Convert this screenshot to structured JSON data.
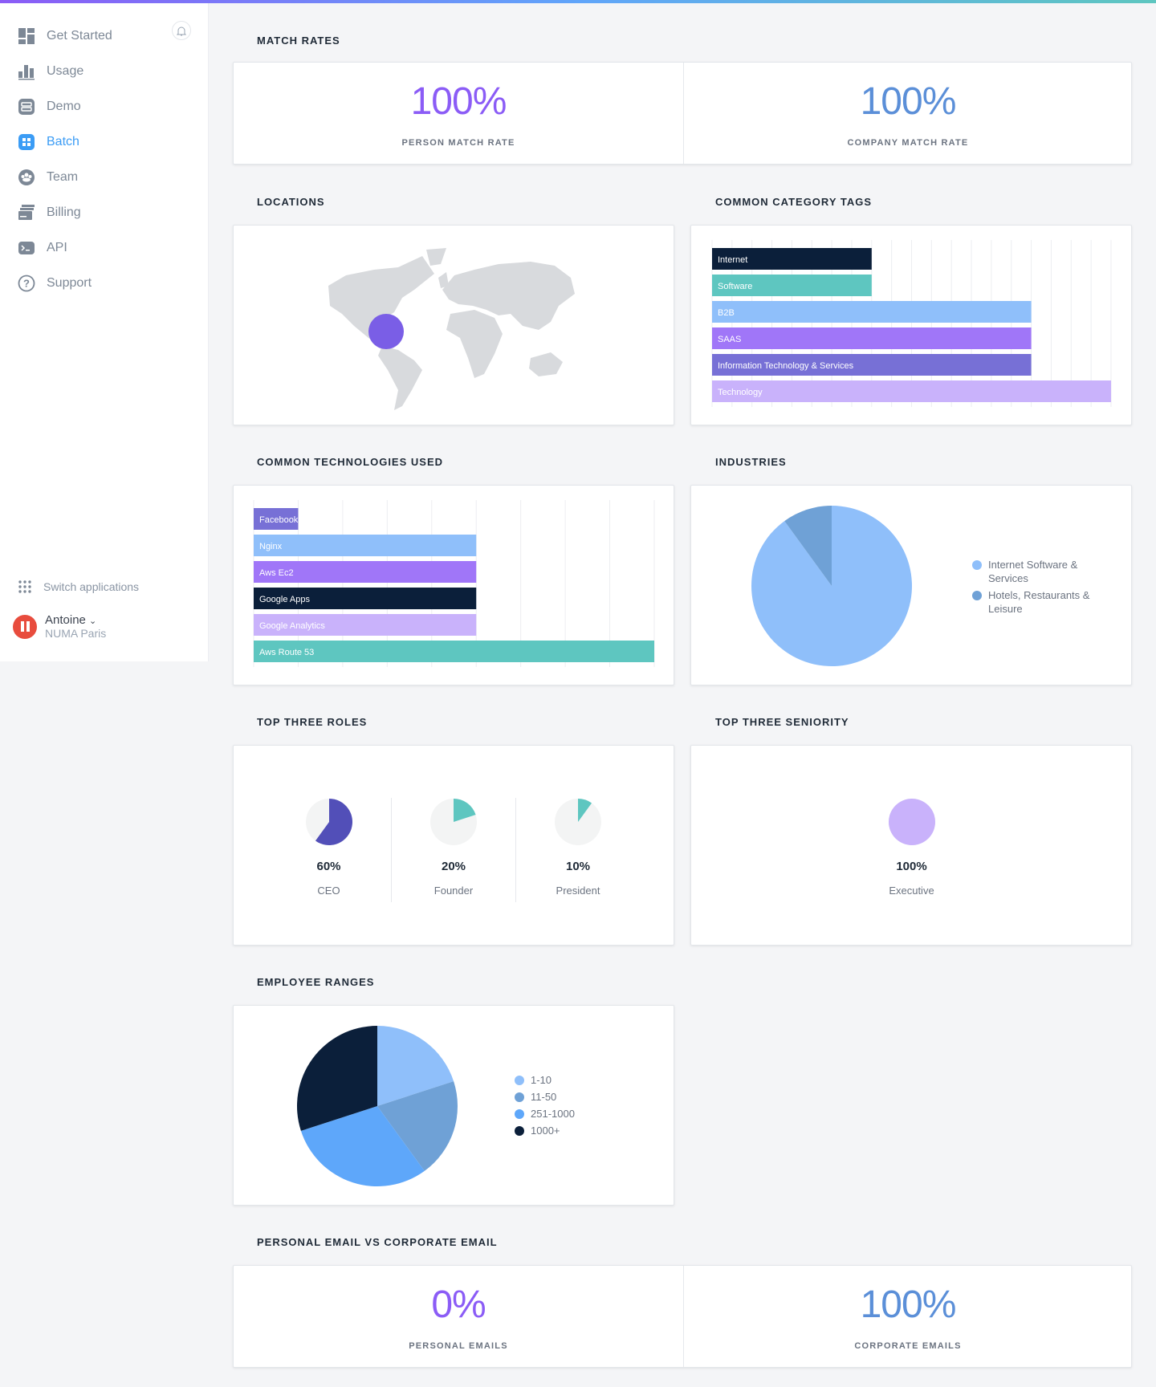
{
  "sidebar": {
    "items": [
      {
        "label": "Get Started",
        "icon": "dashboard-icon"
      },
      {
        "label": "Usage",
        "icon": "bar-chart-icon"
      },
      {
        "label": "Demo",
        "icon": "demo-icon"
      },
      {
        "label": "Batch",
        "icon": "batch-icon",
        "active": true
      },
      {
        "label": "Team",
        "icon": "team-icon"
      },
      {
        "label": "Billing",
        "icon": "billing-icon"
      },
      {
        "label": "API",
        "icon": "terminal-icon"
      },
      {
        "label": "Support",
        "icon": "help-icon"
      }
    ],
    "switch_label": "Switch applications",
    "user": {
      "name": "Antoine",
      "org": "NUMA Paris"
    }
  },
  "colors": {
    "accent": "#3b9cf5",
    "purple": "#8b5cf6",
    "blue": "#5b8fd8"
  },
  "match_rates": {
    "title": "MATCH RATES",
    "person": {
      "value": "100%",
      "label": "PERSON MATCH RATE"
    },
    "company": {
      "value": "100%",
      "label": "COMPANY MATCH RATE"
    }
  },
  "locations": {
    "title": "LOCATIONS"
  },
  "emails": {
    "title": "PERSONAL EMAIL VS CORPORATE EMAIL",
    "personal": {
      "value": "0%",
      "label": "PERSONAL EMAILS"
    },
    "corporate": {
      "value": "100%",
      "label": "CORPORATE EMAILS"
    }
  },
  "chart_data": [
    {
      "id": "category_tags",
      "type": "bar",
      "title": "COMMON CATEGORY TAGS",
      "orientation": "horizontal",
      "categories": [
        "Internet",
        "Software",
        "B2B",
        "SAAS",
        "Information Technology & Services",
        "Technology"
      ],
      "values": [
        2,
        2,
        4,
        4,
        4,
        5
      ],
      "colors": [
        "#0b1f3a",
        "#5ec6c0",
        "#8fbffa",
        "#a076f8",
        "#7770d6",
        "#c9b2fb"
      ],
      "grid": true
    },
    {
      "id": "technologies",
      "type": "bar",
      "title": "COMMON TECHNOLOGIES USED",
      "orientation": "horizontal",
      "categories": [
        "Facebook",
        "Nginx",
        "Aws Ec2",
        "Google Apps",
        "Google Analytics",
        "Aws Route 53"
      ],
      "values": [
        1,
        5,
        5,
        5,
        5,
        9
      ],
      "colors": [
        "#7770d6",
        "#8fbffa",
        "#a076f8",
        "#0b1f3a",
        "#c9b2fb",
        "#5ec6c0"
      ],
      "grid": true
    },
    {
      "id": "industries",
      "type": "pie",
      "title": "INDUSTRIES",
      "labels": [
        "Internet Software & Services",
        "Hotels, Restaurants & Leisure"
      ],
      "values": [
        90,
        10
      ],
      "colors": [
        "#8fbffa",
        "#6fa1d6"
      ],
      "legend": "right"
    },
    {
      "id": "roles",
      "type": "pie",
      "title": "TOP THREE ROLES",
      "items": [
        {
          "label": "CEO",
          "value": 60,
          "display": "60%",
          "color": "#524fb8"
        },
        {
          "label": "Founder",
          "value": 20,
          "display": "20%",
          "color": "#5ec6c0"
        },
        {
          "label": "President",
          "value": 10,
          "display": "10%",
          "color": "#5ec6c0"
        }
      ]
    },
    {
      "id": "seniority",
      "type": "pie",
      "title": "TOP THREE SENIORITY",
      "items": [
        {
          "label": "Executive",
          "value": 100,
          "display": "100%",
          "color": "#c9b2fb"
        }
      ]
    },
    {
      "id": "employee_ranges",
      "type": "pie",
      "title": "EMPLOYEE RANGES",
      "labels": [
        "1-10",
        "11-50",
        "251-1000",
        "1000+"
      ],
      "values": [
        20,
        20,
        30,
        30
      ],
      "colors": [
        "#8fbffa",
        "#6fa1d6",
        "#5ea7fa",
        "#0b1f3a"
      ],
      "legend": "right"
    }
  ]
}
